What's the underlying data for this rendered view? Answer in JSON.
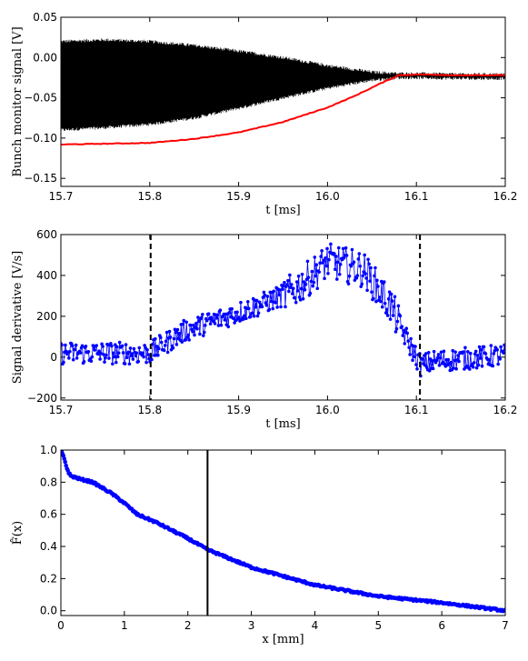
{
  "chart_data": [
    {
      "type": "line",
      "xlabel": "t [ms]",
      "ylabel": "Bunch monitor signal [V]",
      "xlim": [
        15.7,
        16.2
      ],
      "ylim": [
        -0.16,
        0.05
      ],
      "xticks": [
        "15.7",
        "15.8",
        "15.9",
        "16.0",
        "16.1",
        "16.2"
      ],
      "yticks": [
        "0.05",
        "0.00",
        "−0.05",
        "−0.10",
        "−0.15"
      ],
      "grid": false,
      "colors": {
        "signal": "#000000",
        "envelope": "#ff0000"
      },
      "series": [
        {
          "role": "signal-upper-envelope",
          "x": [
            15.7,
            15.75,
            15.8,
            15.85,
            15.9,
            15.95,
            16.0,
            16.05,
            16.08,
            16.1,
            16.15,
            16.2
          ],
          "y": [
            0.02,
            0.022,
            0.02,
            0.015,
            0.008,
            0.0,
            -0.01,
            -0.018,
            -0.02,
            -0.02,
            -0.021,
            -0.021
          ]
        },
        {
          "role": "signal-lower-envelope",
          "x": [
            15.7,
            15.75,
            15.8,
            15.85,
            15.9,
            15.95,
            16.0,
            16.05,
            16.08,
            16.1,
            16.15,
            16.2
          ],
          "y": [
            -0.09,
            -0.087,
            -0.083,
            -0.075,
            -0.063,
            -0.05,
            -0.038,
            -0.028,
            -0.025,
            -0.025,
            -0.026,
            -0.026
          ]
        },
        {
          "role": "envelope-minimum",
          "x": [
            15.7,
            15.75,
            15.8,
            15.85,
            15.9,
            15.95,
            16.0,
            16.03,
            16.06,
            16.08,
            16.1,
            16.15,
            16.2
          ],
          "y": [
            -0.108,
            -0.107,
            -0.106,
            -0.101,
            -0.093,
            -0.08,
            -0.062,
            -0.048,
            -0.032,
            -0.022,
            -0.021,
            -0.022,
            -0.022
          ]
        }
      ]
    },
    {
      "type": "line",
      "xlabel": "t [ms]",
      "ylabel": "Signal derivative [V/s]",
      "xlim": [
        15.7,
        16.2
      ],
      "ylim": [
        -210,
        600
      ],
      "xticks": [
        "15.7",
        "15.8",
        "15.9",
        "16.0",
        "16.1",
        "16.2"
      ],
      "yticks": [
        "600",
        "400",
        "200",
        "0",
        "−200"
      ],
      "grid": false,
      "colors": {
        "series": "#0000ff"
      },
      "vlines": [
        15.801,
        16.104
      ],
      "trend": {
        "x": [
          15.7,
          15.8,
          15.84,
          15.88,
          15.92,
          15.96,
          15.98,
          16.0,
          16.04,
          16.07,
          16.09,
          16.105,
          16.12,
          16.2
        ],
        "y": [
          20,
          20,
          130,
          190,
          250,
          320,
          390,
          470,
          430,
          260,
          80,
          -40,
          -20,
          10
        ]
      },
      "noise_amplitude": 55,
      "n_points": 500
    },
    {
      "type": "scatter",
      "xlabel": "x [mm]",
      "ylabel": "F̂(x)",
      "xlim": [
        0,
        7
      ],
      "ylim": [
        -0.03,
        1.0
      ],
      "xticks": [
        "0",
        "1",
        "2",
        "3",
        "4",
        "5",
        "6",
        "7"
      ],
      "yticks": [
        "1.0",
        "0.8",
        "0.6",
        "0.4",
        "0.2",
        "0.0"
      ],
      "grid": false,
      "colors": {
        "series": "#0000ff"
      },
      "vlines": [
        2.31
      ],
      "trend": {
        "x": [
          0.0,
          0.05,
          0.1,
          0.15,
          0.3,
          0.5,
          0.8,
          1.0,
          1.2,
          1.5,
          2.0,
          2.31,
          3.0,
          4.0,
          5.0,
          6.0,
          7.0
        ],
        "y": [
          1.0,
          0.95,
          0.88,
          0.84,
          0.82,
          0.8,
          0.73,
          0.67,
          0.6,
          0.55,
          0.45,
          0.38,
          0.27,
          0.16,
          0.09,
          0.05,
          0.0
        ]
      },
      "n_points": 420
    }
  ]
}
